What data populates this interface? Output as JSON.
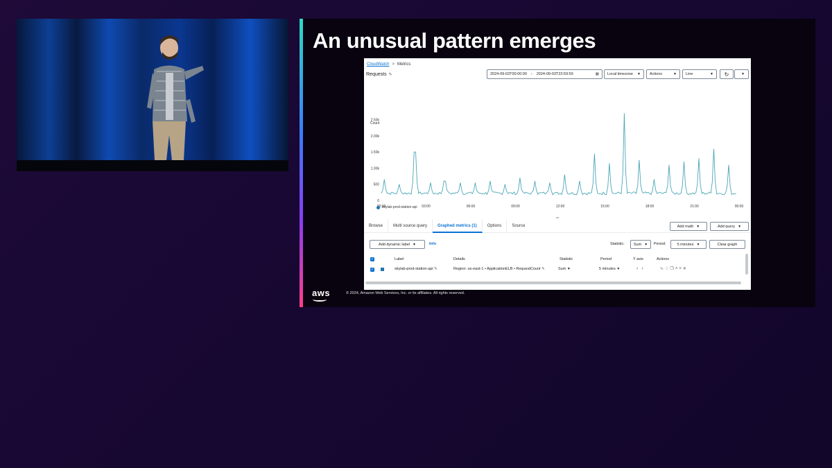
{
  "slide": {
    "title": "An unusual pattern emerges",
    "logo_text": "aws",
    "copyright": "© 2024, Amazon Web Services, Inc. or its affiliates. All rights reserved."
  },
  "console": {
    "breadcrumb": {
      "root": "CloudWatch",
      "separator": ">",
      "current": "Metrics"
    },
    "graph_title": "Requests",
    "date_start": "2024-09-03T00:00:00",
    "date_end": "2024-09-03T23:59:59",
    "timezone": "Local timezone",
    "actions": "Actions",
    "chart_type": "Line",
    "tabs": [
      "Browse",
      "Multi source query",
      "Graphed metrics (1)",
      "Options",
      "Source"
    ],
    "add_math": "Add math",
    "add_query": "Add query",
    "add_dynamic_label": "Add dynamic label",
    "info": "Info",
    "statistic_label": "Statistic:",
    "statistic_value": "Sum",
    "period_label": "Period:",
    "period_value": "5 minutes",
    "clear_graph": "Clear graph",
    "table": {
      "headers": [
        "Label",
        "Details",
        "Statistic",
        "Period",
        "Y axis",
        "Actions"
      ],
      "row": {
        "label": "skylab-prod-station-api",
        "details": "Region: us-east-1 • ApplicationELB • RequestCount",
        "statistic": "Sum",
        "period": "5 minutes"
      }
    }
  },
  "chart_data": {
    "type": "line",
    "ylabel": "Count",
    "yticks": [
      "0",
      "500",
      "1.00k",
      "1.50k",
      "2.00k",
      "2.50k"
    ],
    "ylim": [
      0,
      2900
    ],
    "xticks": [
      "00:00",
      "03:00",
      "06:00",
      "09:00",
      "12:00",
      "15:00",
      "18:00",
      "21:00",
      "00:00"
    ],
    "xlim": [
      0,
      24
    ],
    "color": "#4aa6b8",
    "legend": [
      "skylab-prod-station-api"
    ],
    "spikes": [
      [
        0.2,
        650
      ],
      [
        1.2,
        500
      ],
      [
        2.25,
        1500
      ],
      [
        3.3,
        550
      ],
      [
        4.25,
        600
      ],
      [
        5.3,
        550
      ],
      [
        6.3,
        550
      ],
      [
        7.3,
        600
      ],
      [
        8.3,
        500
      ],
      [
        9.3,
        700
      ],
      [
        10.3,
        600
      ],
      [
        11.3,
        550
      ],
      [
        12.3,
        800
      ],
      [
        13.3,
        600
      ],
      [
        14.3,
        1450
      ],
      [
        15.3,
        1150
      ],
      [
        16.3,
        2700
      ],
      [
        17.3,
        1250
      ],
      [
        18.3,
        650
      ],
      [
        19.3,
        1100
      ],
      [
        20.3,
        1200
      ],
      [
        21.3,
        1300
      ],
      [
        22.3,
        1600
      ],
      [
        23.3,
        1100
      ]
    ],
    "baseline": 220
  },
  "colors": {
    "accent_blue": "#0972d3",
    "series": "#4aa6b8",
    "slide_bg": "#08030f"
  },
  "icons": [
    "edit-icon",
    "calendar-icon",
    "refresh-icon",
    "caret-down-icon",
    "chevron-left-icon",
    "chevron-right-icon",
    "alarm-icon",
    "copy-icon",
    "close-icon"
  ]
}
